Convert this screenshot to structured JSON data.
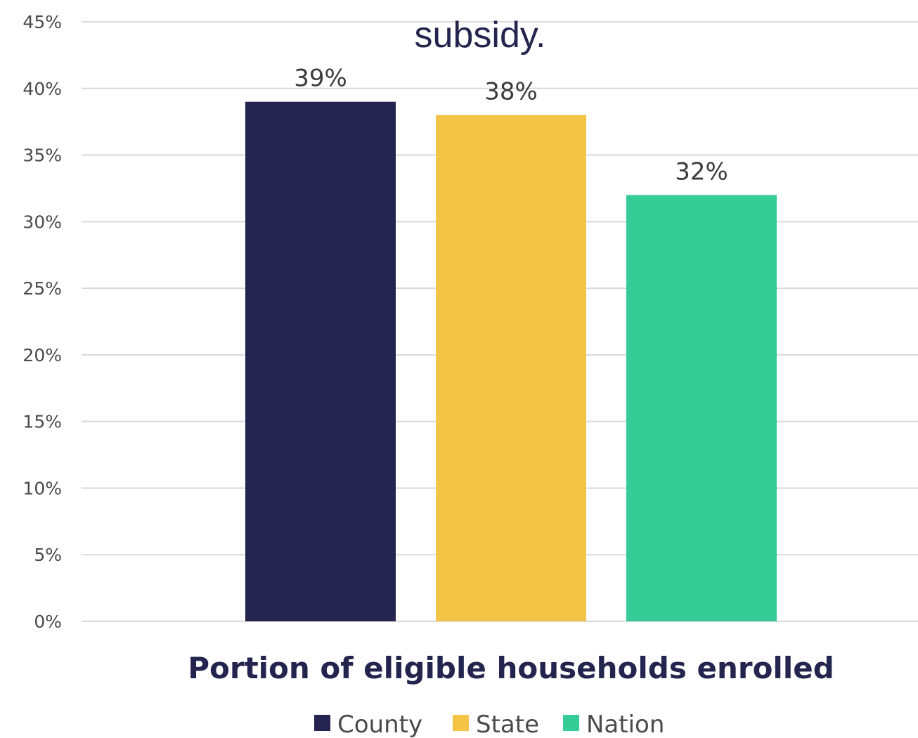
{
  "chart_data": {
    "type": "bar",
    "title": "subsidy.",
    "xlabel": "Portion of eligible households enrolled",
    "ylabel": "",
    "ylim": [
      0,
      45
    ],
    "yticks": [
      "0%",
      "5%",
      "10%",
      "15%",
      "20%",
      "25%",
      "30%",
      "35%",
      "40%",
      "45%"
    ],
    "ytick_values": [
      0,
      5,
      10,
      15,
      20,
      25,
      30,
      35,
      40,
      45
    ],
    "grid": true,
    "legend_position": "bottom",
    "series": [
      {
        "name": "County",
        "values": [
          39
        ],
        "label": "39%",
        "color": "#24244f"
      },
      {
        "name": "State",
        "values": [
          38
        ],
        "label": "38%",
        "color": "#f3c445"
      },
      {
        "name": "Nation",
        "values": [
          32
        ],
        "label": "32%",
        "color": "#36cc98"
      }
    ]
  }
}
